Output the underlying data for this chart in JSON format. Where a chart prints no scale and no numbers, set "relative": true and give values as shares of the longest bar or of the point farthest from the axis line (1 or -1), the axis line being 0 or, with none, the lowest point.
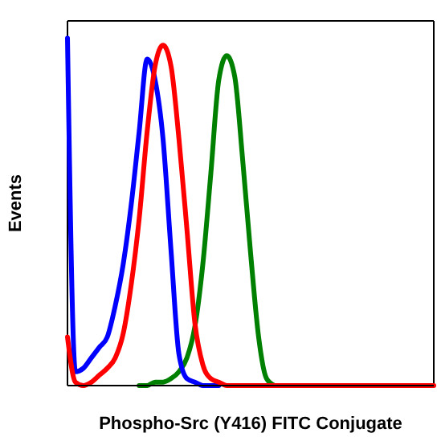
{
  "chart_data": {
    "type": "line",
    "relative": true,
    "xlabel": "Phospho-Src (Y416) FITC Conjugate",
    "ylabel": "Events",
    "marker": "none",
    "categories": [
      null,
      null,
      null,
      null,
      null,
      null,
      null,
      null,
      null,
      null,
      null,
      null,
      null,
      null,
      null,
      null,
      null,
      null,
      null,
      null,
      null,
      null,
      null,
      null,
      null,
      null,
      null,
      null,
      null,
      null,
      null,
      null,
      null,
      null,
      null,
      null,
      null,
      null,
      null,
      null,
      null,
      null,
      null,
      null,
      null,
      null,
      null
    ],
    "series": [
      {
        "color": "#008000",
        "values": [
          null,
          null,
          null,
          null,
          null,
          null,
          null,
          null,
          null,
          0,
          0,
          0.01,
          0.01,
          0.02,
          0.04,
          0.08,
          0.17,
          0.35,
          0.61,
          0.88,
          0.95,
          0.89,
          0.65,
          0.38,
          0.14,
          0.02,
          0,
          null,
          null,
          null,
          null,
          null,
          null,
          null,
          null,
          null,
          null,
          null,
          null,
          null,
          null,
          null,
          null,
          null,
          null,
          null,
          null
        ]
      },
      {
        "color": "#0000ff",
        "values": [
          1.0,
          0.04,
          0.05,
          0.08,
          0.11,
          0.14,
          0.23,
          0.35,
          0.52,
          0.73,
          0.94,
          0.88,
          0.71,
          0.39,
          0.09,
          0.02,
          0.01,
          0,
          0,
          0,
          null,
          null,
          null,
          null,
          null,
          null,
          null,
          null,
          null,
          null,
          null,
          null,
          null,
          null,
          null,
          null,
          null,
          null,
          null,
          null,
          null,
          null,
          null,
          null,
          null,
          null,
          null
        ]
      },
      {
        "color": "#ff0000",
        "values": [
          0.14,
          0.01,
          0,
          0.01,
          0.03,
          0.05,
          0.08,
          0.15,
          0.29,
          0.48,
          0.73,
          0.92,
          0.98,
          0.92,
          0.71,
          0.45,
          0.18,
          0.06,
          0.02,
          0.01,
          0,
          0,
          0,
          0,
          0,
          0,
          0,
          0,
          0,
          0,
          0,
          0,
          0,
          0,
          0,
          0,
          0,
          0,
          0,
          0,
          0,
          0,
          0,
          0,
          0,
          0,
          0
        ]
      }
    ]
  }
}
